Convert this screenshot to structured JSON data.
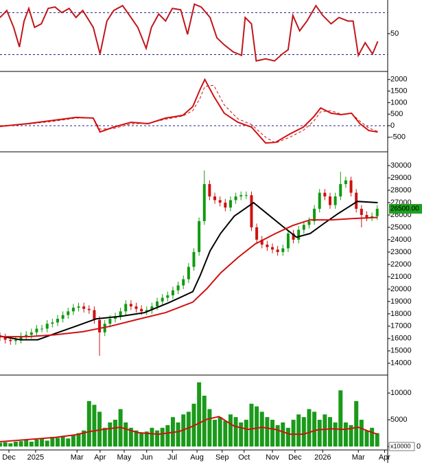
{
  "chart_data": [
    {
      "type": "line",
      "xlim": [
        0,
        74
      ],
      "ylim": [
        -3,
        98
      ],
      "yticks": [
        50
      ],
      "levels": [
        20,
        80
      ],
      "level_color": "#1c1c8c",
      "x": [
        0,
        1.3,
        2.6,
        3.7,
        4.6,
        5.5,
        6.6,
        7.9,
        9.2,
        10.5,
        11.8,
        13.2,
        14.5,
        15.8,
        17.8,
        19.1,
        20.4,
        21.7,
        23.4,
        25,
        26.3,
        27.9,
        28.9,
        30.3,
        31.6,
        32.9,
        34.5,
        35.8,
        37.1,
        38.4,
        40.1,
        41.4,
        42.8,
        44.5,
        46.1,
        46.8,
        48,
        48.9,
        50.7,
        52.4,
        53.9,
        55,
        55.9,
        57.2,
        58.6,
        60.3,
        61.6,
        63.2,
        64.7,
        66.4,
        67.4,
        68.4,
        69.7,
        71.1,
        72.1
      ],
      "series": [
        {
          "color": "#c0151a",
          "dash": false,
          "values": [
            73,
            83,
            59,
            31,
            68,
            86,
            59,
            64,
            86,
            88,
            80,
            86,
            73,
            83,
            59,
            21,
            68,
            83,
            90,
            73,
            59,
            29,
            59,
            78,
            68,
            86,
            84,
            49,
            92,
            88,
            73,
            44,
            34,
            24,
            19,
            73,
            64,
            11,
            14,
            11,
            21,
            27,
            76,
            54,
            68,
            90,
            76,
            64,
            73,
            68,
            68,
            19,
            37,
            21,
            39
          ]
        }
      ]
    },
    {
      "type": "line",
      "xlim": [
        0,
        74
      ],
      "ylim": [
        -1100,
        2260
      ],
      "yticks": [
        -500,
        0,
        500,
        1000,
        1500,
        2000
      ],
      "levels": [
        0
      ],
      "level_color": "#1c1c8c",
      "x": [
        0,
        5.3,
        10.5,
        14.5,
        17.8,
        19.1,
        21.7,
        25,
        28.3,
        31.6,
        34.9,
        36.8,
        38.2,
        39.1,
        40.8,
        42.8,
        45.4,
        48,
        50.7,
        52.6,
        55.3,
        57.9,
        59.9,
        61.2,
        63.2,
        65.1,
        67.1,
        68.7,
        70.4,
        72.1
      ],
      "series": [
        {
          "color": "#d01010",
          "dash": false,
          "values": [
            -30,
            90,
            240,
            360,
            330,
            -270,
            -60,
            150,
            90,
            330,
            450,
            830,
            1580,
            2000,
            1280,
            540,
            150,
            -60,
            -750,
            -720,
            -360,
            -60,
            390,
            770,
            540,
            480,
            540,
            90,
            -210,
            -270
          ]
        },
        {
          "color": "#d01010",
          "dash": true,
          "values": [
            0,
            70,
            200,
            330,
            340,
            -150,
            -120,
            80,
            110,
            280,
            420,
            650,
            1200,
            1700,
            1750,
            900,
            300,
            50,
            -500,
            -750,
            -500,
            -200,
            200,
            600,
            650,
            500,
            520,
            200,
            -100,
            -250
          ]
        }
      ]
    },
    {
      "type": "candlestick",
      "xlim": [
        0,
        74
      ],
      "ylim": [
        13100,
        31000
      ],
      "yticks": [
        14000,
        15000,
        16000,
        17000,
        18000,
        19000,
        20000,
        21000,
        22000,
        23000,
        24000,
        25000,
        26000,
        27000,
        28000,
        29000,
        30000
      ],
      "up_color": "#109a10",
      "down_color": "#d01010",
      "last_price": {
        "value": 26500,
        "label": "26500.00",
        "color": "#1fa01f"
      },
      "x": [
        0,
        1,
        2,
        3,
        4,
        5,
        6,
        7,
        8,
        9,
        10,
        11,
        12,
        13,
        14,
        15,
        16,
        17,
        18,
        19,
        20,
        21,
        22,
        23,
        24,
        25,
        26,
        27,
        28,
        29,
        30,
        31,
        32,
        33,
        34,
        35,
        36,
        37,
        38,
        39,
        40,
        41,
        42,
        43,
        44,
        45,
        46,
        47,
        48,
        49,
        50,
        51,
        52,
        53,
        54,
        55,
        56,
        57,
        58,
        59,
        60,
        61,
        62,
        63,
        64,
        65,
        66,
        67,
        68,
        69,
        70,
        71,
        72
      ],
      "open": [
        16200,
        16100,
        15900,
        15800,
        15900,
        16200,
        16300,
        16500,
        16800,
        16800,
        17200,
        17300,
        17600,
        17900,
        18200,
        18500,
        18600,
        18400,
        18300,
        17500,
        16500,
        17200,
        17600,
        17800,
        18200,
        18800,
        18600,
        18400,
        18200,
        18300,
        18600,
        19000,
        19300,
        19500,
        19900,
        20300,
        20800,
        21800,
        23000,
        25500,
        28500,
        27500,
        27200,
        27000,
        26600,
        27200,
        27500,
        27600,
        27600,
        25000,
        24000,
        23600,
        23400,
        23200,
        23000,
        23300,
        24500,
        24000,
        24800,
        25200,
        25500,
        26500,
        27800,
        27500,
        26800,
        27500,
        28500,
        28800,
        27800,
        26500,
        26000,
        25800,
        25900
      ],
      "high": [
        16500,
        16400,
        16200,
        16200,
        16500,
        16600,
        16800,
        17100,
        17100,
        17500,
        17600,
        17900,
        18200,
        18500,
        18800,
        18900,
        18900,
        18700,
        18600,
        17800,
        17500,
        17900,
        18100,
        18500,
        19100,
        19100,
        18900,
        18700,
        18600,
        18900,
        19300,
        19600,
        19800,
        20200,
        20600,
        21100,
        22100,
        23300,
        25800,
        29600,
        28800,
        27800,
        27500,
        27300,
        27500,
        27800,
        27900,
        27900,
        27900,
        25300,
        24300,
        23900,
        23700,
        23500,
        23600,
        24800,
        24800,
        25100,
        25500,
        25800,
        26800,
        28100,
        28100,
        27800,
        27800,
        29500,
        29100,
        29100,
        28100,
        26800,
        26300,
        26200,
        26800
      ],
      "low": [
        15800,
        15600,
        15500,
        15500,
        15600,
        15900,
        16000,
        16200,
        16500,
        16500,
        16900,
        17000,
        17300,
        17600,
        17900,
        18200,
        18100,
        18000,
        17200,
        14600,
        16200,
        16900,
        17300,
        17500,
        17900,
        18300,
        18100,
        17900,
        17900,
        18000,
        18300,
        18700,
        19000,
        19200,
        19600,
        20000,
        20500,
        21500,
        22700,
        25200,
        27200,
        26900,
        26700,
        26300,
        26300,
        26900,
        27200,
        27300,
        24700,
        23700,
        23300,
        23100,
        22900,
        22700,
        22700,
        23000,
        23700,
        23700,
        24500,
        24900,
        25200,
        26200,
        27200,
        26500,
        26500,
        27200,
        28200,
        27500,
        26200,
        25000,
        25500,
        25500,
        25600
      ],
      "close": [
        16100,
        15900,
        15800,
        15900,
        16200,
        16300,
        16500,
        16800,
        16800,
        17200,
        17300,
        17600,
        17900,
        18200,
        18500,
        18600,
        18400,
        18300,
        17500,
        16500,
        17200,
        17600,
        17800,
        18200,
        18800,
        18600,
        18400,
        18200,
        18300,
        18600,
        19000,
        19300,
        19500,
        19900,
        20300,
        20800,
        21800,
        23000,
        25500,
        28500,
        27500,
        27200,
        27000,
        26600,
        27200,
        27500,
        27600,
        27600,
        25000,
        24000,
        23600,
        23400,
        23200,
        23000,
        23300,
        24500,
        24000,
        24800,
        25200,
        25500,
        26500,
        27800,
        27500,
        26800,
        27500,
        28500,
        28800,
        27800,
        26500,
        26000,
        25800,
        25900,
        26500
      ],
      "series": [
        {
          "color": "#000000",
          "x": [
            0,
            3.9,
            7.2,
            10.5,
            14.5,
            18.4,
            23,
            27.6,
            32.2,
            36.8,
            38.2,
            40.1,
            42.1,
            44.7,
            48.4,
            50.7,
            53.9,
            56.6,
            59.2,
            61.8,
            64.5,
            68.2,
            72.1
          ],
          "values": [
            16200,
            15900,
            15900,
            16400,
            17000,
            17600,
            17800,
            18100,
            18900,
            19800,
            21100,
            23100,
            24500,
            25900,
            27000,
            26200,
            25100,
            24200,
            24500,
            25300,
            26100,
            27100,
            27000
          ]
        },
        {
          "color": "#d01010",
          "x": [
            0,
            5.3,
            10.5,
            15.8,
            21.1,
            26.3,
            31.6,
            36.8,
            39.5,
            42.1,
            45.4,
            48.7,
            52.6,
            55.9,
            59.2,
            63.2,
            67.1,
            72.1
          ],
          "values": [
            16150,
            16150,
            16300,
            16550,
            17000,
            17550,
            18100,
            18950,
            20050,
            21300,
            22550,
            23650,
            24500,
            25150,
            25600,
            25600,
            25700,
            25800
          ]
        }
      ]
    },
    {
      "type": "bar",
      "xlim": [
        0,
        74
      ],
      "ylim": [
        0,
        13100
      ],
      "yticks": [
        0,
        5000,
        10000
      ],
      "unit_label": "x10000",
      "bar_color": "#1a9a1a",
      "x": [
        0,
        1,
        2,
        3,
        4,
        5,
        6,
        7,
        8,
        9,
        10,
        11,
        12,
        13,
        14,
        15,
        16,
        17,
        18,
        19,
        20,
        21,
        22,
        23,
        24,
        25,
        26,
        27,
        28,
        29,
        30,
        31,
        32,
        33,
        34,
        35,
        36,
        37,
        38,
        39,
        40,
        41,
        42,
        43,
        44,
        45,
        46,
        47,
        48,
        49,
        50,
        51,
        52,
        53,
        54,
        55,
        56,
        57,
        58,
        59,
        60,
        61,
        62,
        63,
        64,
        65,
        66,
        67,
        68,
        69,
        70,
        71,
        72
      ],
      "values": [
        700,
        800,
        600,
        900,
        1000,
        1200,
        900,
        1300,
        1500,
        1100,
        1800,
        1600,
        2000,
        1500,
        2200,
        2500,
        3000,
        8500,
        7800,
        6500,
        3500,
        4500,
        5000,
        7000,
        4500,
        3500,
        3000,
        2500,
        2800,
        3500,
        3000,
        3500,
        4000,
        5500,
        4500,
        6000,
        6500,
        8000,
        12000,
        9500,
        7000,
        5000,
        5500,
        4800,
        6000,
        5500,
        4500,
        5000,
        8000,
        7500,
        6500,
        5500,
        5000,
        4000,
        4500,
        3500,
        5000,
        6000,
        5500,
        7000,
        6500,
        5000,
        6000,
        5500,
        4500,
        10500,
        4500,
        4000,
        8500,
        5000,
        3000,
        3500,
        2500
      ],
      "series": [
        {
          "color": "#d01010",
          "x": [
            0,
            5.3,
            10.5,
            14.5,
            17.1,
            19.7,
            23,
            26.3,
            30.3,
            34.2,
            36.8,
            39.5,
            41.8,
            44.7,
            47.4,
            50,
            52.6,
            55.3,
            57.9,
            60.5,
            63.2,
            65.8,
            68.4,
            71.1,
            72.1
          ],
          "values": [
            900,
            1300,
            1700,
            2200,
            2800,
            3200,
            3600,
            2600,
            2300,
            2800,
            3800,
            5100,
            5600,
            3800,
            3200,
            3600,
            3200,
            2300,
            2300,
            3100,
            3300,
            3200,
            3600,
            2600,
            2300
          ]
        }
      ],
      "xticks": [
        {
          "value": 1.7,
          "label": "Dec"
        },
        {
          "value": 6.8,
          "label": "2025"
        },
        {
          "value": 14.7,
          "label": "Mar"
        },
        {
          "value": 19.1,
          "label": "Apr"
        },
        {
          "value": 23.7,
          "label": "May"
        },
        {
          "value": 28,
          "label": "Jun"
        },
        {
          "value": 32.9,
          "label": "Jul"
        },
        {
          "value": 37.6,
          "label": "Aug"
        },
        {
          "value": 42.4,
          "label": "Sep"
        },
        {
          "value": 46.6,
          "label": "Oct"
        },
        {
          "value": 52,
          "label": "Nov"
        },
        {
          "value": 56.3,
          "label": "Dec"
        },
        {
          "value": 61.6,
          "label": "2026"
        },
        {
          "value": 68.4,
          "label": "Mar"
        },
        {
          "value": 73.4,
          "label": "Apr"
        }
      ]
    }
  ]
}
